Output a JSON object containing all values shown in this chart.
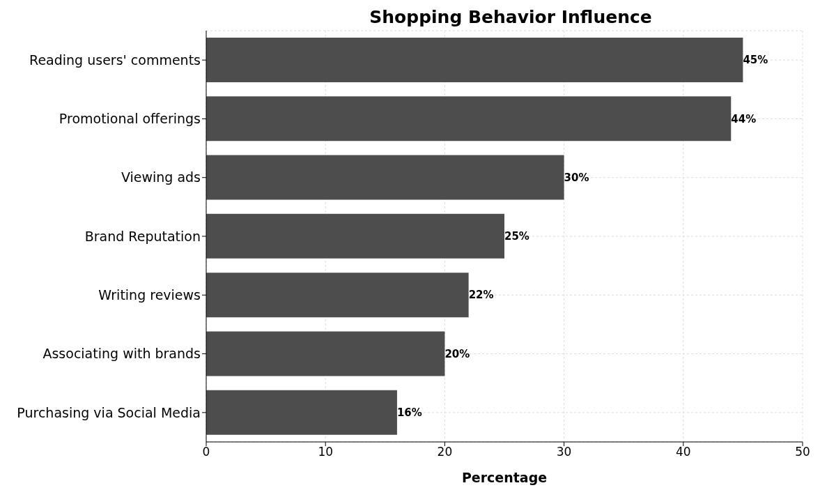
{
  "chart_data": {
    "type": "bar",
    "orientation": "horizontal",
    "title": "Shopping Behavior Influence",
    "xlabel": "Percentage",
    "categories": [
      "Reading users' comments",
      "Promotional offerings",
      "Viewing ads",
      "Brand Reputation",
      "Writing reviews",
      "Associating with brands",
      "Purchasing via Social Media"
    ],
    "values": [
      45,
      44,
      30,
      25,
      22,
      20,
      16
    ],
    "value_labels": [
      "45%",
      "44%",
      "30%",
      "25%",
      "22%",
      "20%",
      "16%"
    ],
    "color": "#4d4d4d",
    "xlim": [
      0,
      50
    ],
    "xticks": [
      0,
      10,
      20,
      30,
      40,
      50
    ],
    "grid": true,
    "legend": false
  }
}
